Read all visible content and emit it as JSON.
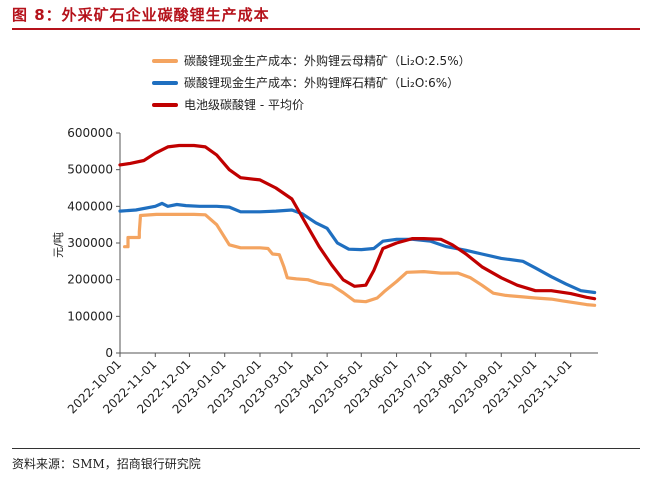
{
  "figure": {
    "title": "图 8：外采矿石企业碳酸锂生产成本",
    "source": "资料来源：SMM，招商银行研究院"
  },
  "chart_data": {
    "type": "line",
    "title": "",
    "xlabel": "",
    "ylabel": "元/吨",
    "ylim": [
      0,
      600000
    ],
    "yticks": [
      0,
      100000,
      200000,
      300000,
      400000,
      500000,
      600000
    ],
    "ytick_labels": [
      "0",
      "100000",
      "200000",
      "300000",
      "400000",
      "500000",
      "600000"
    ],
    "xlim": [
      "2022-10-01",
      "2023-11-25"
    ],
    "xticks": [
      "2022-10-01",
      "2022-11-01",
      "2022-12-01",
      "2023-01-01",
      "2023-02-01",
      "2023-03-01",
      "2023-04-01",
      "2023-05-01",
      "2023-06-01",
      "2023-07-01",
      "2023-08-01",
      "2023-09-01",
      "2023-10-01",
      "2023-11-01"
    ],
    "grid": false,
    "legend_position": "top-left",
    "series": [
      {
        "name": "碳酸锂现金生产成本：外购锂云母精矿（Li₂O:2.5%）",
        "color": "#f4a460",
        "points": [
          [
            "2022-10-05",
            290000
          ],
          [
            "2022-10-08",
            290000
          ],
          [
            "2022-10-08",
            315000
          ],
          [
            "2022-10-18",
            315000
          ],
          [
            "2022-10-18",
            330000
          ],
          [
            "2022-10-19",
            375000
          ],
          [
            "2022-11-02",
            378000
          ],
          [
            "2022-11-20",
            378000
          ],
          [
            "2022-12-05",
            378000
          ],
          [
            "2022-12-15",
            377000
          ],
          [
            "2022-12-25",
            350000
          ],
          [
            "2023-01-05",
            295000
          ],
          [
            "2023-01-15",
            287000
          ],
          [
            "2023-02-01",
            287000
          ],
          [
            "2023-02-08",
            285000
          ],
          [
            "2023-02-12",
            270000
          ],
          [
            "2023-02-18",
            268000
          ],
          [
            "2023-02-22",
            235000
          ],
          [
            "2023-02-25",
            205000
          ],
          [
            "2023-03-05",
            202000
          ],
          [
            "2023-03-15",
            200000
          ],
          [
            "2023-03-25",
            190000
          ],
          [
            "2023-04-05",
            185000
          ],
          [
            "2023-04-15",
            165000
          ],
          [
            "2023-04-25",
            142000
          ],
          [
            "2023-05-05",
            140000
          ],
          [
            "2023-05-15",
            150000
          ],
          [
            "2023-05-22",
            170000
          ],
          [
            "2023-06-01",
            195000
          ],
          [
            "2023-06-10",
            220000
          ],
          [
            "2023-06-25",
            222000
          ],
          [
            "2023-07-10",
            218000
          ],
          [
            "2023-07-25",
            218000
          ],
          [
            "2023-08-05",
            205000
          ],
          [
            "2023-08-15",
            185000
          ],
          [
            "2023-08-25",
            163000
          ],
          [
            "2023-09-05",
            157000
          ],
          [
            "2023-09-20",
            153000
          ],
          [
            "2023-10-01",
            150000
          ],
          [
            "2023-10-15",
            147000
          ],
          [
            "2023-10-25",
            142000
          ],
          [
            "2023-11-05",
            137000
          ],
          [
            "2023-11-15",
            132000
          ],
          [
            "2023-11-22",
            130000
          ]
        ]
      },
      {
        "name": "碳酸锂现金生产成本：外购锂辉石精矿（Li₂O:6%）",
        "color": "#1f6fc0",
        "points": [
          [
            "2022-10-01",
            387000
          ],
          [
            "2022-10-15",
            390000
          ],
          [
            "2022-11-01",
            400000
          ],
          [
            "2022-11-07",
            408000
          ],
          [
            "2022-11-12",
            400000
          ],
          [
            "2022-11-20",
            405000
          ],
          [
            "2022-11-28",
            402000
          ],
          [
            "2022-12-10",
            400000
          ],
          [
            "2022-12-25",
            400000
          ],
          [
            "2023-01-05",
            398000
          ],
          [
            "2023-01-15",
            385000
          ],
          [
            "2023-02-01",
            385000
          ],
          [
            "2023-02-15",
            387000
          ],
          [
            "2023-03-01",
            390000
          ],
          [
            "2023-03-10",
            380000
          ],
          [
            "2023-03-22",
            355000
          ],
          [
            "2023-04-01",
            340000
          ],
          [
            "2023-04-10",
            300000
          ],
          [
            "2023-04-20",
            283000
          ],
          [
            "2023-05-01",
            282000
          ],
          [
            "2023-05-12",
            285000
          ],
          [
            "2023-05-20",
            305000
          ],
          [
            "2023-06-01",
            310000
          ],
          [
            "2023-06-15",
            310000
          ],
          [
            "2023-07-01",
            305000
          ],
          [
            "2023-07-15",
            290000
          ],
          [
            "2023-08-01",
            280000
          ],
          [
            "2023-08-15",
            270000
          ],
          [
            "2023-09-01",
            258000
          ],
          [
            "2023-09-20",
            250000
          ],
          [
            "2023-10-01",
            232000
          ],
          [
            "2023-10-15",
            208000
          ],
          [
            "2023-10-28",
            188000
          ],
          [
            "2023-11-10",
            170000
          ],
          [
            "2023-11-22",
            165000
          ]
        ]
      },
      {
        "name": "电池级碳酸锂 - 平均价",
        "color": "#c00000",
        "points": [
          [
            "2022-10-01",
            513000
          ],
          [
            "2022-10-10",
            517000
          ],
          [
            "2022-10-22",
            525000
          ],
          [
            "2022-11-01",
            545000
          ],
          [
            "2022-11-12",
            562000
          ],
          [
            "2022-11-22",
            566000
          ],
          [
            "2022-12-05",
            566000
          ],
          [
            "2022-12-15",
            562000
          ],
          [
            "2022-12-25",
            540000
          ],
          [
            "2023-01-05",
            500000
          ],
          [
            "2023-01-15",
            478000
          ],
          [
            "2023-02-01",
            472000
          ],
          [
            "2023-02-15",
            450000
          ],
          [
            "2023-03-01",
            420000
          ],
          [
            "2023-03-12",
            360000
          ],
          [
            "2023-03-25",
            290000
          ],
          [
            "2023-04-05",
            240000
          ],
          [
            "2023-04-15",
            200000
          ],
          [
            "2023-04-25",
            182000
          ],
          [
            "2023-05-05",
            185000
          ],
          [
            "2023-05-12",
            225000
          ],
          [
            "2023-05-20",
            285000
          ],
          [
            "2023-06-01",
            300000
          ],
          [
            "2023-06-15",
            312000
          ],
          [
            "2023-06-25",
            312000
          ],
          [
            "2023-07-10",
            310000
          ],
          [
            "2023-07-20",
            295000
          ],
          [
            "2023-08-01",
            270000
          ],
          [
            "2023-08-15",
            235000
          ],
          [
            "2023-09-01",
            205000
          ],
          [
            "2023-09-15",
            185000
          ],
          [
            "2023-10-01",
            170000
          ],
          [
            "2023-10-15",
            170000
          ],
          [
            "2023-11-01",
            162000
          ],
          [
            "2023-11-15",
            152000
          ],
          [
            "2023-11-22",
            148000
          ]
        ]
      }
    ]
  }
}
